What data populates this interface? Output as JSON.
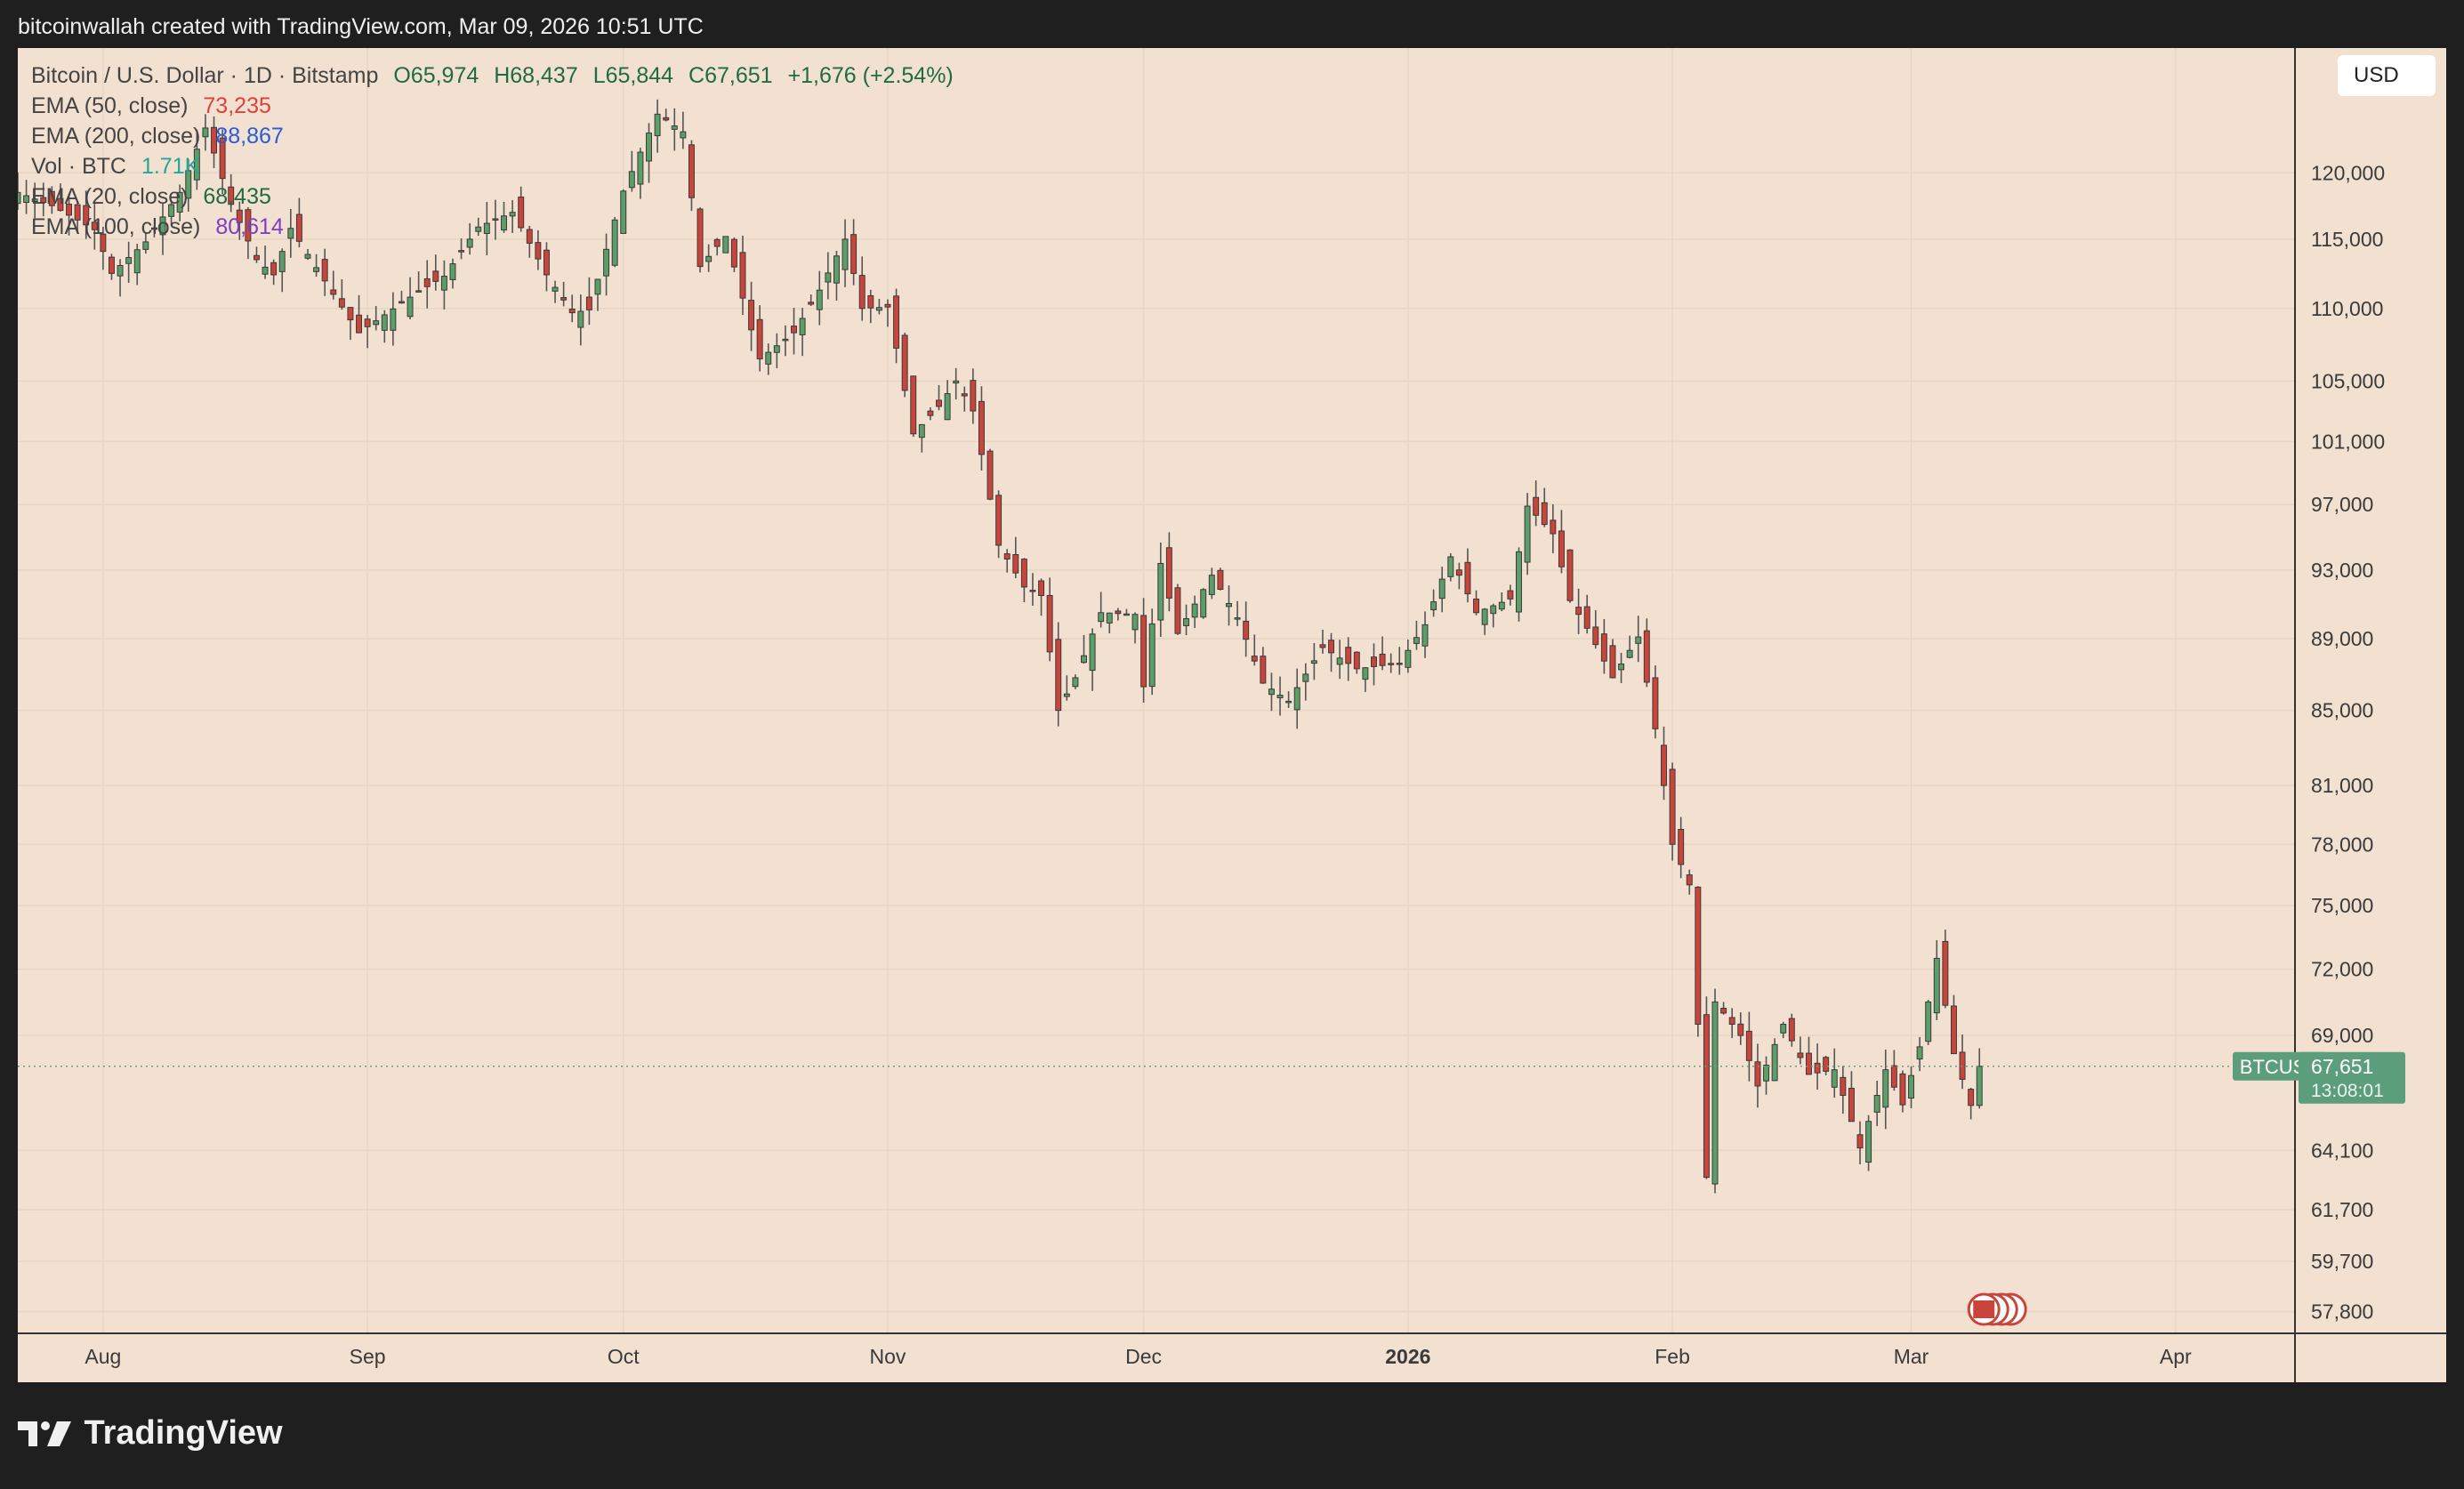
{
  "header": {
    "attribution": "bitcoinwallah created with TradingView.com, Mar 09, 2026 10:51 UTC"
  },
  "legend": {
    "symbol": "Bitcoin / U.S. Dollar · 1D · Bitstamp",
    "open": "O65,974",
    "high": "H68,437",
    "low": "L65,844",
    "close": "C67,651",
    "change": "+1,676 (+2.54%)",
    "indicators": [
      {
        "label": "EMA (50, close)",
        "value": "73,235",
        "color": "#e0413c"
      },
      {
        "label": "EMA (200, close)",
        "value": "88,867",
        "color": "#2a5bd7"
      },
      {
        "label": "Vol · BTC",
        "value": "1.71K",
        "color": "#26a69a"
      },
      {
        "label": "EMA (20, close)",
        "value": "68,435",
        "color": "#1e6b44"
      },
      {
        "label": "EMA (100, close)",
        "value": "80,614",
        "color": "#7e3fc0"
      }
    ]
  },
  "currency_button": "USD",
  "price_tag": {
    "symbol": "BTCUSD",
    "price": "67,651",
    "countdown": "13:08:01",
    "color": "#5c9e7c"
  },
  "footer": {
    "brand": "TradingView"
  },
  "colors": {
    "up": "#5c9e6a",
    "down": "#c9453c",
    "background": "#f2e0d0",
    "grid": "#e8d6c4"
  },
  "chart_data": {
    "type": "candlestick",
    "title": "Bitcoin / U.S. Dollar · 1D · Bitstamp",
    "y_scale": "log",
    "ylim": [
      57000,
      130000
    ],
    "x_range": [
      "2025-07-22",
      "2026-04-15"
    ],
    "y_ticks": [
      120000,
      115000,
      110000,
      105000,
      101000,
      97000,
      93000,
      89000,
      85000,
      81000,
      78000,
      75000,
      72000,
      69000,
      64100,
      61700,
      59700,
      57800
    ],
    "y_tick_labels": [
      "120,000",
      "115,000",
      "110,000",
      "105,000",
      "101,000",
      "97,000",
      "93,000",
      "89,000",
      "85,000",
      "81,000",
      "78,000",
      "75,000",
      "72,000",
      "69,000",
      "64,100",
      "61,700",
      "59,700",
      "57,800"
    ],
    "x_ticks": [
      {
        "date": "2025-08-01",
        "label": "Aug"
      },
      {
        "date": "2025-09-01",
        "label": "Sep"
      },
      {
        "date": "2025-10-01",
        "label": "Oct"
      },
      {
        "date": "2025-11-01",
        "label": "Nov"
      },
      {
        "date": "2025-12-01",
        "label": "Dec"
      },
      {
        "date": "2026-01-01",
        "label": "2026"
      },
      {
        "date": "2026-02-01",
        "label": "Feb"
      },
      {
        "date": "2026-03-01",
        "label": "Mar"
      },
      {
        "date": "2026-04-01",
        "label": "Apr"
      }
    ],
    "last_price": 67651,
    "anchors": [
      [
        "2025-07-22",
        118500
      ],
      [
        "2025-07-26",
        117500
      ],
      [
        "2025-07-31",
        115700
      ],
      [
        "2025-08-02",
        112500
      ],
      [
        "2025-08-06",
        114800
      ],
      [
        "2025-08-10",
        118500
      ],
      [
        "2025-08-13",
        123500
      ],
      [
        "2025-08-16",
        117600
      ],
      [
        "2025-08-19",
        113500
      ],
      [
        "2025-08-21",
        112400
      ],
      [
        "2025-08-23",
        115800
      ],
      [
        "2025-08-28",
        111000
      ],
      [
        "2025-08-31",
        108300
      ],
      [
        "2025-09-06",
        110800
      ],
      [
        "2025-09-10",
        112300
      ],
      [
        "2025-09-14",
        115900
      ],
      [
        "2025-09-18",
        117000
      ],
      [
        "2025-09-22",
        112400
      ],
      [
        "2025-09-25",
        109700
      ],
      [
        "2025-09-27",
        109900
      ],
      [
        "2025-10-01",
        118600
      ],
      [
        "2025-10-05",
        124600
      ],
      [
        "2025-10-08",
        123200
      ],
      [
        "2025-10-10",
        113000
      ],
      [
        "2025-10-13",
        115200
      ],
      [
        "2025-10-16",
        108500
      ],
      [
        "2025-10-17",
        106500
      ],
      [
        "2025-10-21",
        108300
      ],
      [
        "2025-10-24",
        111300
      ],
      [
        "2025-10-27",
        115000
      ],
      [
        "2025-10-29",
        110000
      ],
      [
        "2025-11-01",
        110100
      ],
      [
        "2025-11-04",
        101500
      ],
      [
        "2025-11-07",
        103300
      ],
      [
        "2025-11-09",
        105000
      ],
      [
        "2025-11-11",
        103000
      ],
      [
        "2025-11-14",
        94500
      ],
      [
        "2025-11-17",
        92000
      ],
      [
        "2025-11-19",
        91500
      ],
      [
        "2025-11-21",
        85000
      ],
      [
        "2025-11-23",
        86800
      ],
      [
        "2025-11-26",
        90500
      ],
      [
        "2025-11-30",
        90400
      ],
      [
        "2025-12-01",
        86300
      ],
      [
        "2025-12-03",
        93400
      ],
      [
        "2025-12-05",
        89300
      ],
      [
        "2025-12-09",
        92700
      ],
      [
        "2025-12-12",
        90200
      ],
      [
        "2025-12-15",
        86500
      ],
      [
        "2025-12-18",
        85500
      ],
      [
        "2025-12-22",
        88500
      ],
      [
        "2025-12-26",
        87300
      ],
      [
        "2025-12-31",
        87600
      ],
      [
        "2026-01-03",
        89800
      ],
      [
        "2026-01-06",
        93800
      ],
      [
        "2026-01-09",
        90500
      ],
      [
        "2026-01-13",
        91300
      ],
      [
        "2026-01-15",
        96900
      ],
      [
        "2026-01-18",
        95200
      ],
      [
        "2026-01-20",
        91200
      ],
      [
        "2026-01-22",
        89600
      ],
      [
        "2026-01-25",
        86800
      ],
      [
        "2026-01-28",
        89100
      ],
      [
        "2026-01-30",
        84000
      ],
      [
        "2026-02-01",
        78000
      ],
      [
        "2026-02-03",
        76000
      ],
      [
        "2026-02-05",
        63000
      ],
      [
        "2026-02-06",
        70500
      ],
      [
        "2026-02-09",
        69000
      ],
      [
        "2026-02-11",
        66800
      ],
      [
        "2026-02-14",
        69500
      ],
      [
        "2026-02-17",
        67300
      ],
      [
        "2026-02-20",
        67500
      ],
      [
        "2026-02-23",
        64200
      ],
      [
        "2026-02-26",
        67500
      ],
      [
        "2026-02-28",
        66000
      ],
      [
        "2026-03-02",
        68500
      ],
      [
        "2026-03-04",
        72500
      ],
      [
        "2026-03-06",
        68200
      ],
      [
        "2026-03-08",
        65974
      ],
      [
        "2026-03-09",
        67651
      ]
    ]
  }
}
